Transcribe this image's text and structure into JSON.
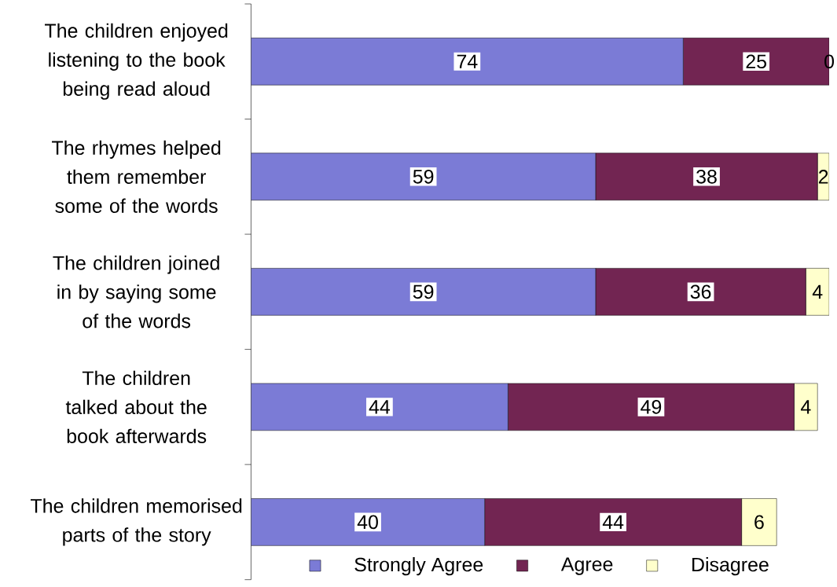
{
  "chart_data": {
    "type": "bar",
    "orientation": "horizontal",
    "stacked": true,
    "data_labels": true,
    "legend": "bottom",
    "tick_labels": "y",
    "categories": [
      "The children enjoyed listening to the book being read aloud",
      "The rhymes helped them remember some of the words",
      "The children joined in by saying some of the words",
      "The children talked about the book afterwards",
      "The children memorised parts of the story"
    ],
    "series": [
      {
        "name": "Strongly Agree",
        "color": "#7b7bd6",
        "values": [
          74,
          59,
          59,
          44,
          40
        ]
      },
      {
        "name": "Agree",
        "color": "#722552",
        "values": [
          25,
          38,
          36,
          49,
          44
        ]
      },
      {
        "name": "Disagree",
        "color": "#ffffcc",
        "values": [
          0,
          2,
          4,
          4,
          6
        ]
      }
    ]
  }
}
